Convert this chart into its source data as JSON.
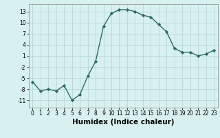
{
  "x": [
    0,
    1,
    2,
    3,
    4,
    5,
    6,
    7,
    8,
    9,
    10,
    11,
    12,
    13,
    14,
    15,
    16,
    17,
    18,
    19,
    20,
    21,
    22,
    23
  ],
  "y": [
    -6,
    -8.5,
    -8,
    -8.5,
    -7,
    -11,
    -9.5,
    -4.5,
    -0.5,
    9,
    12.5,
    13.5,
    13.5,
    13,
    12,
    11.5,
    9.5,
    7.5,
    3,
    2,
    2,
    1,
    1.5,
    2.5
  ],
  "line_color": "#2d6b5e",
  "marker": "D",
  "marker_size": 2.2,
  "bg_color": "#d8f0f0",
  "grid_color": "#b8d8d8",
  "xlabel": "Humidex (Indice chaleur)",
  "xlabel_weight": "bold",
  "ylim": [
    -13,
    15
  ],
  "xlim": [
    -0.5,
    23.5
  ],
  "yticks": [
    -11,
    -8,
    -5,
    -2,
    1,
    4,
    7,
    10,
    13
  ],
  "xticks": [
    0,
    1,
    2,
    3,
    4,
    5,
    6,
    7,
    8,
    9,
    10,
    11,
    12,
    13,
    14,
    15,
    16,
    17,
    18,
    19,
    20,
    21,
    22,
    23
  ],
  "tick_fontsize": 5.5,
  "xlabel_fontsize": 7.5,
  "linewidth": 1.0
}
